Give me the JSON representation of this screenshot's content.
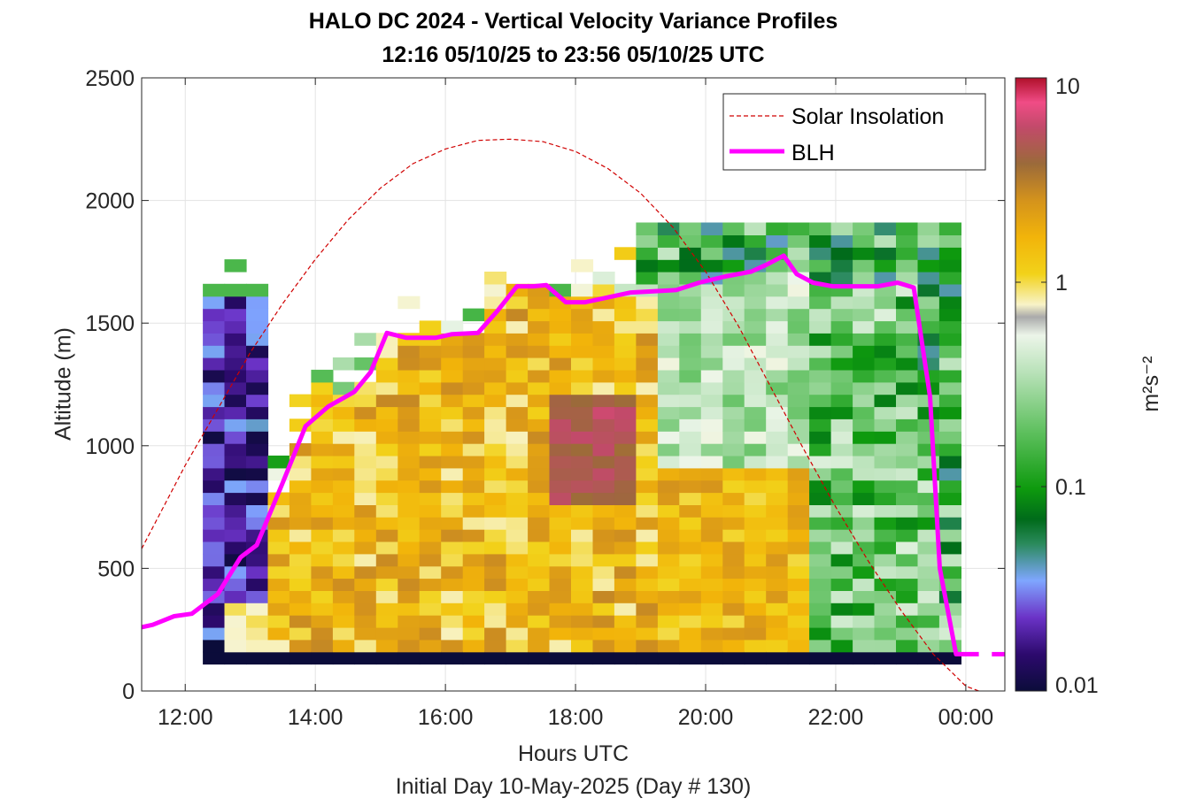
{
  "chart_data": {
    "type": "heatmap",
    "title": "HALO DC 2024 - Vertical Velocity Variance Profiles",
    "subtitle": "12:16 05/10/25 to 23:56 05/10/25  UTC",
    "xlabel": "Hours UTC",
    "xsublabel": "Initial Day 10-May-2025 (Day # 130)",
    "ylabel": "Altitude (m)",
    "colorbar_label": "m²s⁻²",
    "colorbar_scale": "log",
    "colorbar_range": [
      0.01,
      10
    ],
    "colorbar_ticks": [
      {
        "value": 0.01,
        "label": "0.01"
      },
      {
        "value": 0.1,
        "label": "0.1"
      },
      {
        "value": 1,
        "label": "1"
      },
      {
        "value": 10,
        "label": "10"
      }
    ],
    "xlim": [
      11.33,
      24.6
    ],
    "ylim": [
      0,
      2500
    ],
    "x_ticks": [
      {
        "value": 12,
        "label": "12:00"
      },
      {
        "value": 14,
        "label": "14:00"
      },
      {
        "value": 16,
        "label": "16:00"
      },
      {
        "value": 18,
        "label": "18:00"
      },
      {
        "value": 20,
        "label": "20:00"
      },
      {
        "value": 22,
        "label": "22:00"
      },
      {
        "value": 24,
        "label": "00:00"
      }
    ],
    "y_ticks": [
      0,
      500,
      1000,
      1500,
      2000,
      2500
    ],
    "grid": true,
    "legend_position": "top-right",
    "legend": [
      {
        "name": "Solar Insolation",
        "color": "#d00000",
        "style": "dashed"
      },
      {
        "name": "BLH",
        "color": "#ff00ff",
        "style": "solid"
      }
    ],
    "heatmap": {
      "time_start": 12.27,
      "time_step": 0.333,
      "n_columns": 35,
      "alt_start": 110,
      "alt_step": 50,
      "n_rows": 36,
      "notes": "values in m2 s-2; lowest row is below threshold (~0.01) across all columns"
    },
    "blh": {
      "name": "BLH",
      "x": [
        11.33,
        11.5,
        11.83,
        12.1,
        12.5,
        12.85,
        13.1,
        13.5,
        13.85,
        14.2,
        14.6,
        14.85,
        15.1,
        15.4,
        15.85,
        16.1,
        16.5,
        16.8,
        17.1,
        17.35,
        17.55,
        17.85,
        18.15,
        18.5,
        18.85,
        19.2,
        19.55,
        19.9,
        20.3,
        20.7,
        20.95,
        21.2,
        21.4,
        21.65,
        21.95,
        22.3,
        22.65,
        22.95,
        23.2,
        23.45,
        23.6,
        23.85,
        24.0,
        24.2
      ],
      "y": [
        260,
        270,
        305,
        315,
        395,
        545,
        595,
        850,
        1080,
        1160,
        1220,
        1300,
        1460,
        1440,
        1440,
        1455,
        1460,
        1550,
        1650,
        1650,
        1655,
        1585,
        1585,
        1605,
        1625,
        1630,
        1635,
        1665,
        1690,
        1710,
        1740,
        1775,
        1700,
        1665,
        1650,
        1650,
        1650,
        1665,
        1645,
        1200,
        500,
        150,
        150,
        150
      ]
    },
    "blh_tail": {
      "x": [
        24.4,
        24.6
      ],
      "y": [
        150,
        150
      ]
    },
    "solar": {
      "name": "Solar Insolation",
      "x": [
        11.33,
        12.0,
        12.5,
        13.0,
        13.5,
        14.0,
        14.5,
        15.0,
        15.5,
        16.0,
        16.5,
        17.0,
        17.5,
        18.0,
        18.5,
        19.0,
        19.5,
        20.0,
        20.5,
        21.0,
        21.5,
        22.0,
        22.5,
        23.0,
        23.5,
        24.0,
        24.2
      ],
      "y": [
        580,
        920,
        1150,
        1380,
        1580,
        1760,
        1920,
        2050,
        2150,
        2210,
        2245,
        2250,
        2240,
        2200,
        2130,
        2030,
        1890,
        1710,
        1490,
        1240,
        990,
        750,
        530,
        330,
        150,
        20,
        0
      ]
    }
  }
}
